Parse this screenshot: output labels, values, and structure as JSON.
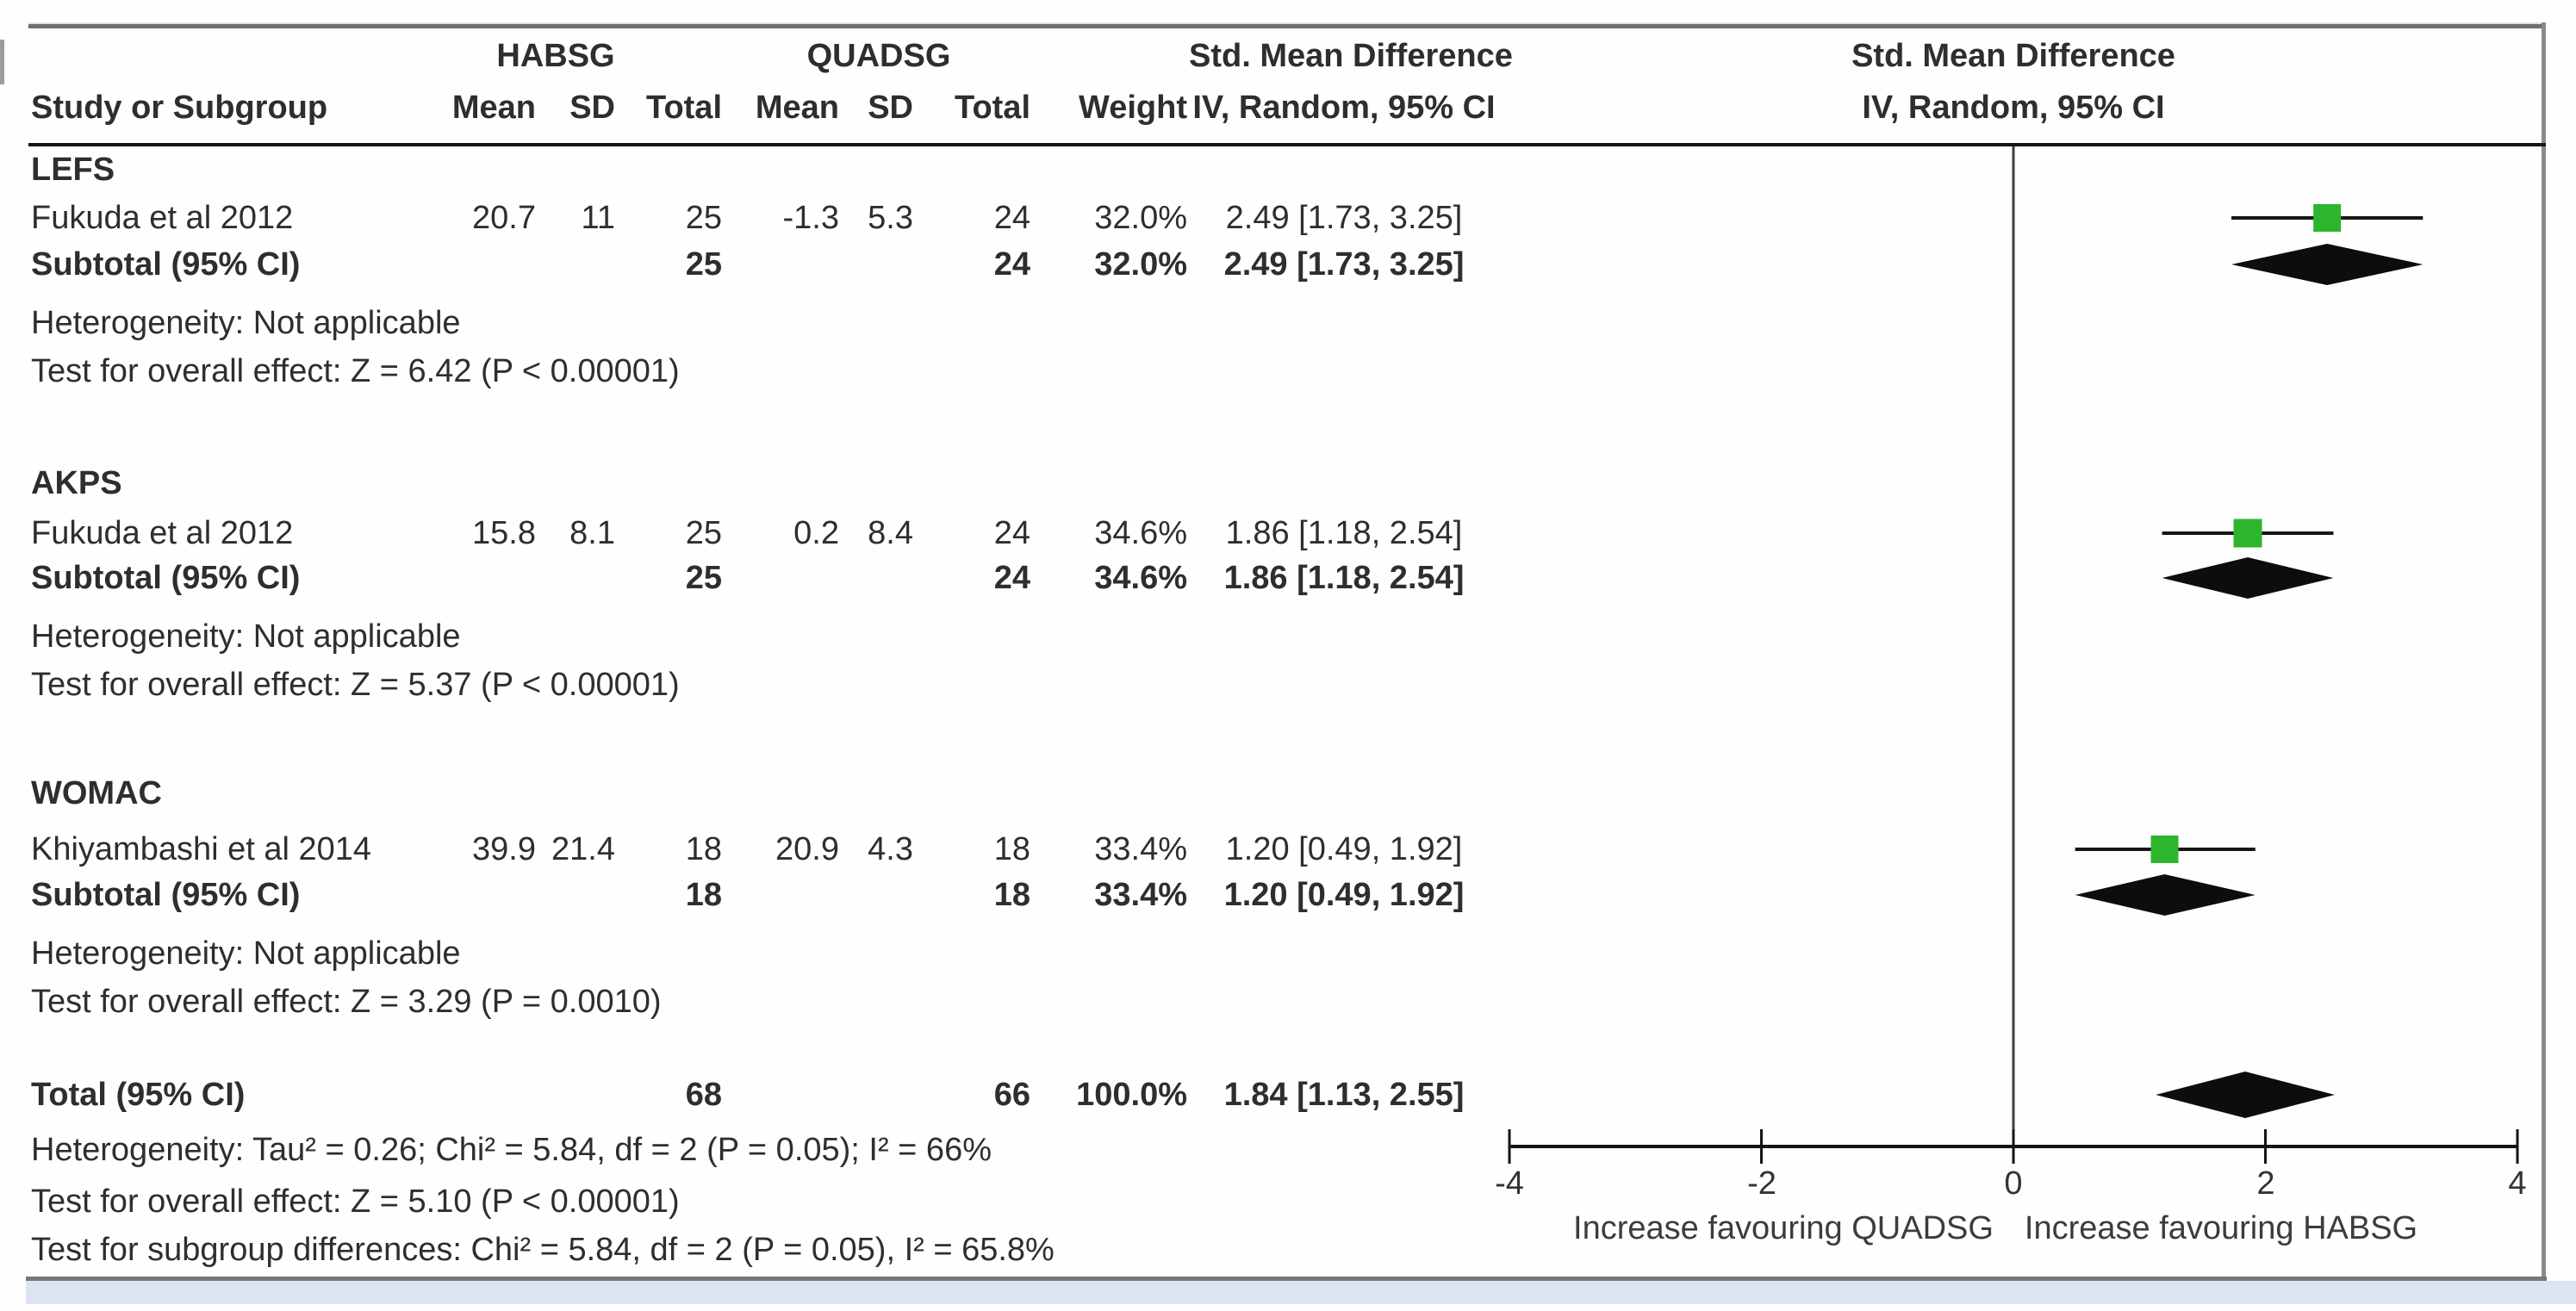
{
  "header": {
    "group1": "HABSG",
    "group2": "QUADSG",
    "study_col": "Study or Subgroup",
    "mean": "Mean",
    "sd": "SD",
    "total": "Total",
    "weight": "Weight",
    "smd_col_title": "Std. Mean Difference",
    "smd_col_sub": "IV, Random, 95% CI",
    "plot_title": "Std. Mean Difference",
    "plot_sub": "IV, Random, 95% CI"
  },
  "sections": {
    "lefs": {
      "label": "LEFS",
      "study": {
        "name": "Fukuda et al 2012",
        "mean1": "20.7",
        "sd1": "11",
        "total1": "25",
        "mean2": "-1.3",
        "sd2": "5.3",
        "total2": "24",
        "weight": "32.0%",
        "ci": "2.49 [1.73, 3.25]"
      },
      "subtotal": {
        "label": "Subtotal (95% CI)",
        "total1": "25",
        "total2": "24",
        "weight": "32.0%",
        "ci": "2.49 [1.73, 3.25]"
      },
      "heterogeneity": "Heterogeneity: Not applicable",
      "overall": "Test for overall effect: Z = 6.42 (P < 0.00001)"
    },
    "akps": {
      "label": "AKPS",
      "study": {
        "name": "Fukuda et al 2012",
        "mean1": "15.8",
        "sd1": "8.1",
        "total1": "25",
        "mean2": "0.2",
        "sd2": "8.4",
        "total2": "24",
        "weight": "34.6%",
        "ci": "1.86 [1.18, 2.54]"
      },
      "subtotal": {
        "label": "Subtotal (95% CI)",
        "total1": "25",
        "total2": "24",
        "weight": "34.6%",
        "ci": "1.86 [1.18, 2.54]"
      },
      "heterogeneity": "Heterogeneity: Not applicable",
      "overall": "Test for overall effect: Z = 5.37 (P < 0.00001)"
    },
    "womac": {
      "label": "WOMAC",
      "study": {
        "name": "Khiyambashi et al 2014",
        "mean1": "39.9",
        "sd1": "21.4",
        "total1": "18",
        "mean2": "20.9",
        "sd2": "4.3",
        "total2": "18",
        "weight": "33.4%",
        "ci": "1.20 [0.49, 1.92]"
      },
      "subtotal": {
        "label": "Subtotal (95% CI)",
        "total1": "18",
        "total2": "18",
        "weight": "33.4%",
        "ci": "1.20 [0.49, 1.92]"
      },
      "heterogeneity": "Heterogeneity: Not applicable",
      "overall": "Test for overall effect: Z = 3.29 (P = 0.0010)"
    }
  },
  "total_row": {
    "label": "Total (95% CI)",
    "total1": "68",
    "total2": "66",
    "weight": "100.0%",
    "ci": "1.84 [1.13, 2.55]",
    "heterogeneity": "Heterogeneity: Tau² = 0.26; Chi² = 5.84, df = 2 (P = 0.05); I² = 66%",
    "overall": "Test for overall effect: Z = 5.10 (P < 0.00001)",
    "subgroup": "Test for subgroup differences: Chi² = 5.84, df = 2 (P = 0.05), I² = 65.8%"
  },
  "chart_data": {
    "type": "forest",
    "effect_measure": "Std. Mean Difference, IV, Random, 95% CI",
    "x_axis": {
      "min": -4,
      "max": 4,
      "ticks": [
        -4,
        -2,
        0,
        2,
        4
      ],
      "label_left": "Increase favouring QUADSG",
      "label_right": "Increase favouring HABSG"
    },
    "subgroups": [
      {
        "id": "lefs",
        "name": "LEFS",
        "studies": [
          {
            "study": "Fukuda et al 2012",
            "mean_habsg": 20.7,
            "sd_habsg": 11,
            "total_habsg": 25,
            "mean_quadsg": -1.3,
            "sd_quadsg": 5.3,
            "total_quadsg": 24,
            "weight_pct": 32.0,
            "smd": 2.49,
            "ci_low": 1.73,
            "ci_high": 3.25
          }
        ],
        "subtotal": {
          "total_habsg": 25,
          "total_quadsg": 24,
          "weight_pct": 32.0,
          "smd": 2.49,
          "ci_low": 1.73,
          "ci_high": 3.25
        },
        "heterogeneity": "Not applicable",
        "overall_effect": "Z = 6.42 (P < 0.00001)"
      },
      {
        "id": "akps",
        "name": "AKPS",
        "studies": [
          {
            "study": "Fukuda et al 2012",
            "mean_habsg": 15.8,
            "sd_habsg": 8.1,
            "total_habsg": 25,
            "mean_quadsg": 0.2,
            "sd_quadsg": 8.4,
            "total_quadsg": 24,
            "weight_pct": 34.6,
            "smd": 1.86,
            "ci_low": 1.18,
            "ci_high": 2.54
          }
        ],
        "subtotal": {
          "total_habsg": 25,
          "total_quadsg": 24,
          "weight_pct": 34.6,
          "smd": 1.86,
          "ci_low": 1.18,
          "ci_high": 2.54
        },
        "heterogeneity": "Not applicable",
        "overall_effect": "Z = 5.37 (P < 0.00001)"
      },
      {
        "id": "womac",
        "name": "WOMAC",
        "studies": [
          {
            "study": "Khiyambashi et al 2014",
            "mean_habsg": 39.9,
            "sd_habsg": 21.4,
            "total_habsg": 18,
            "mean_quadsg": 20.9,
            "sd_quadsg": 4.3,
            "total_quadsg": 18,
            "weight_pct": 33.4,
            "smd": 1.2,
            "ci_low": 0.49,
            "ci_high": 1.92
          }
        ],
        "subtotal": {
          "total_habsg": 18,
          "total_quadsg": 18,
          "weight_pct": 33.4,
          "smd": 1.2,
          "ci_low": 0.49,
          "ci_high": 1.92
        },
        "heterogeneity": "Not applicable",
        "overall_effect": "Z = 3.29 (P = 0.0010)"
      }
    ],
    "total": {
      "total_habsg": 68,
      "total_quadsg": 66,
      "weight_pct": 100.0,
      "smd": 1.84,
      "ci_low": 1.13,
      "ci_high": 2.55
    },
    "colors": {
      "point_estimate": "#2db52d",
      "diamond": "#0d0d0d",
      "line": "#161616"
    }
  }
}
